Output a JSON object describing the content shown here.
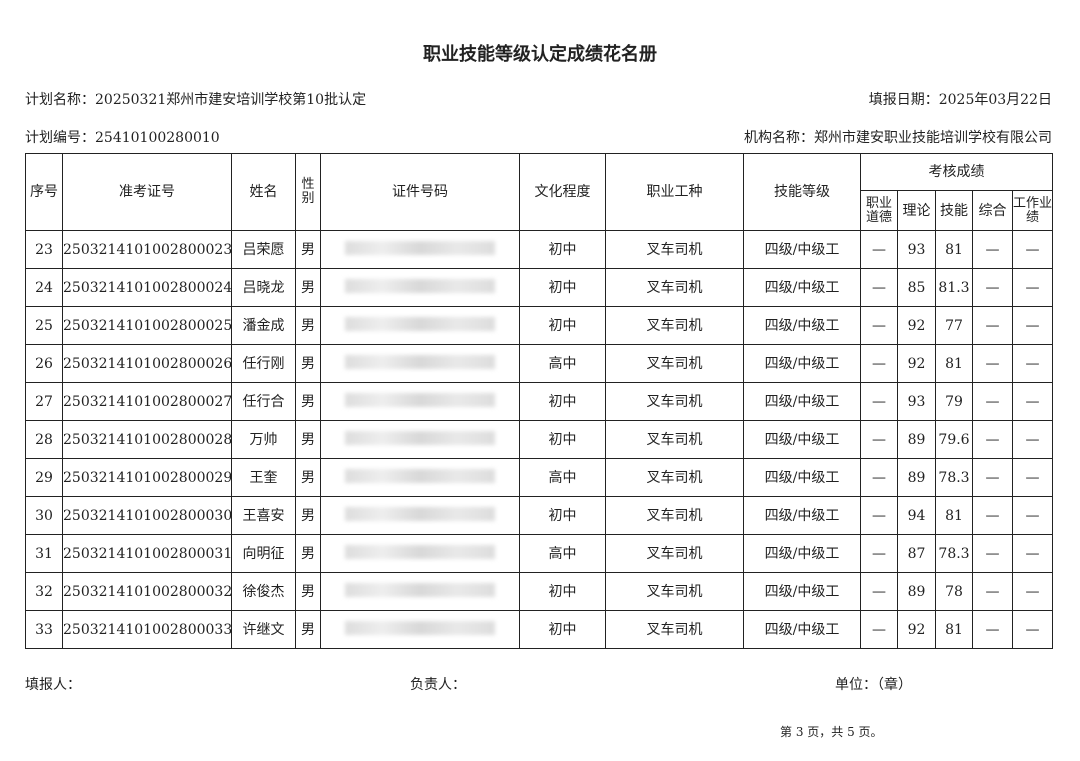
{
  "title": "职业技能等级认定成绩花名册",
  "plan_name": "计划名称：20250321郑州市建安培训学校第10批认定",
  "fill_date": "填报日期：2025年03月22日",
  "plan_no": "计划编号：25410100280010",
  "org_name": "机构名称：郑州市建安职业技能培训学校有限公司",
  "headers": {
    "seq": "序号",
    "exam_no": "准考证号",
    "name": "姓名",
    "gender": "性别",
    "id_no": "证件号码",
    "education": "文化程度",
    "occupation": "职业工种",
    "level": "技能等级",
    "scores": "考核成绩",
    "ethics": "职业道德",
    "theory": "理论",
    "skill": "技能",
    "overall": "综合",
    "work": "工作业绩"
  },
  "rows": [
    {
      "seq": "23",
      "exam_no": "2503214101002800023",
      "name": "吕荣愿",
      "gender": "男",
      "education": "初中",
      "occupation": "叉车司机",
      "level": "四级/中级工",
      "ethics": "—",
      "theory": "93",
      "skill": "81",
      "overall": "—",
      "work": "—"
    },
    {
      "seq": "24",
      "exam_no": "2503214101002800024",
      "name": "吕晓龙",
      "gender": "男",
      "education": "初中",
      "occupation": "叉车司机",
      "level": "四级/中级工",
      "ethics": "—",
      "theory": "85",
      "skill": "81.3",
      "overall": "—",
      "work": "—"
    },
    {
      "seq": "25",
      "exam_no": "2503214101002800025",
      "name": "潘金成",
      "gender": "男",
      "education": "初中",
      "occupation": "叉车司机",
      "level": "四级/中级工",
      "ethics": "—",
      "theory": "92",
      "skill": "77",
      "overall": "—",
      "work": "—"
    },
    {
      "seq": "26",
      "exam_no": "2503214101002800026",
      "name": "任行刚",
      "gender": "男",
      "education": "高中",
      "occupation": "叉车司机",
      "level": "四级/中级工",
      "ethics": "—",
      "theory": "92",
      "skill": "81",
      "overall": "—",
      "work": "—"
    },
    {
      "seq": "27",
      "exam_no": "2503214101002800027",
      "name": "任行合",
      "gender": "男",
      "education": "初中",
      "occupation": "叉车司机",
      "level": "四级/中级工",
      "ethics": "—",
      "theory": "93",
      "skill": "79",
      "overall": "—",
      "work": "—"
    },
    {
      "seq": "28",
      "exam_no": "2503214101002800028",
      "name": "万帅",
      "gender": "男",
      "education": "初中",
      "occupation": "叉车司机",
      "level": "四级/中级工",
      "ethics": "—",
      "theory": "89",
      "skill": "79.6",
      "overall": "—",
      "work": "—"
    },
    {
      "seq": "29",
      "exam_no": "2503214101002800029",
      "name": "王奎",
      "gender": "男",
      "education": "高中",
      "occupation": "叉车司机",
      "level": "四级/中级工",
      "ethics": "—",
      "theory": "89",
      "skill": "78.3",
      "overall": "—",
      "work": "—"
    },
    {
      "seq": "30",
      "exam_no": "2503214101002800030",
      "name": "王喜安",
      "gender": "男",
      "education": "初中",
      "occupation": "叉车司机",
      "level": "四级/中级工",
      "ethics": "—",
      "theory": "94",
      "skill": "81",
      "overall": "—",
      "work": "—"
    },
    {
      "seq": "31",
      "exam_no": "2503214101002800031",
      "name": "向明征",
      "gender": "男",
      "education": "高中",
      "occupation": "叉车司机",
      "level": "四级/中级工",
      "ethics": "—",
      "theory": "87",
      "skill": "78.3",
      "overall": "—",
      "work": "—"
    },
    {
      "seq": "32",
      "exam_no": "2503214101002800032",
      "name": "徐俊杰",
      "gender": "男",
      "education": "初中",
      "occupation": "叉车司机",
      "level": "四级/中级工",
      "ethics": "—",
      "theory": "89",
      "skill": "78",
      "overall": "—",
      "work": "—"
    },
    {
      "seq": "33",
      "exam_no": "2503214101002800033",
      "name": "许继文",
      "gender": "男",
      "education": "初中",
      "occupation": "叉车司机",
      "level": "四级/中级工",
      "ethics": "—",
      "theory": "92",
      "skill": "81",
      "overall": "—",
      "work": "—"
    }
  ],
  "footer": {
    "filler": "填报人：",
    "responsible": "负责人：",
    "unit": "单位：（章）",
    "page": "第 3 页，共 5 页。"
  }
}
